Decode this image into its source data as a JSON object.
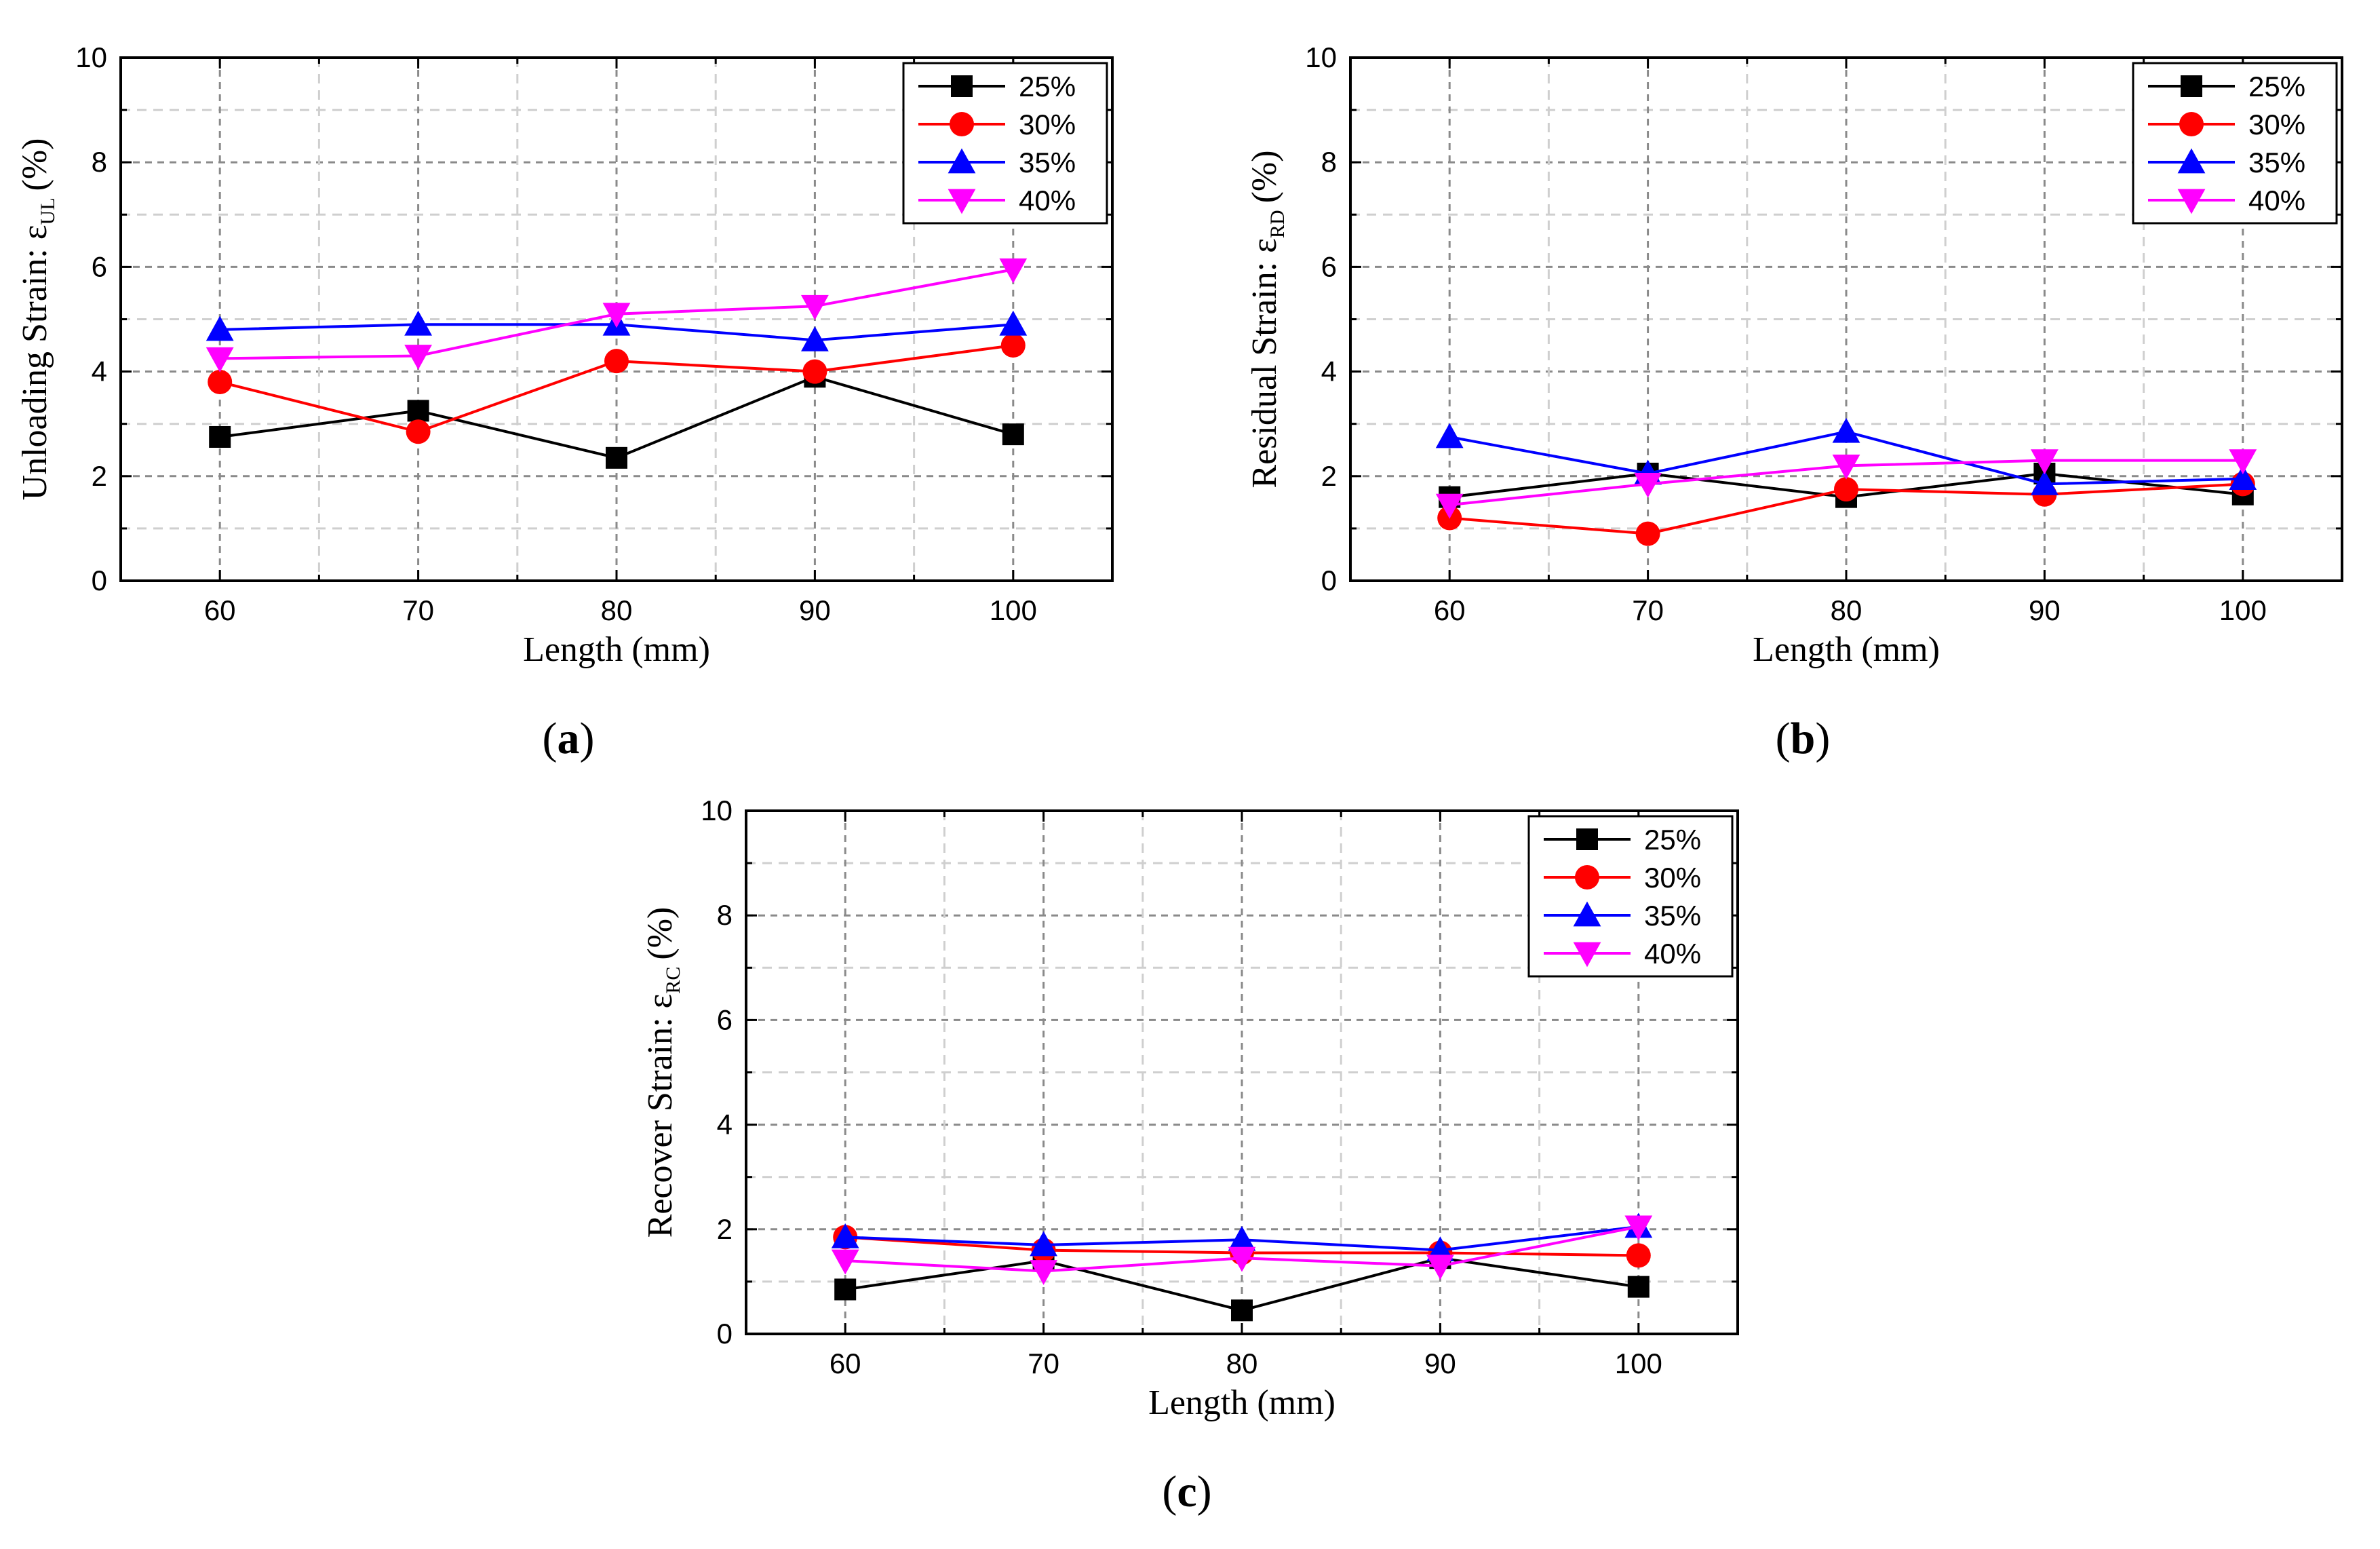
{
  "colors": {
    "25%": "#000000",
    "30%": "#ff0000",
    "35%": "#0000ff",
    "40%": "#ff00ff"
  },
  "chart_data": [
    {
      "type": "line",
      "panel": "(a)",
      "panel_letter": "a",
      "ylabel_main": "Unloading Strain: ε",
      "ylabel_sub": "UL",
      "ylabel_unit": "(%)",
      "xlabel": "Length (mm)",
      "x": [
        60,
        70,
        80,
        90,
        100
      ],
      "xlim": [
        55,
        105
      ],
      "ylim": [
        0,
        10
      ],
      "yticks": [
        0,
        2,
        4,
        6,
        8,
        10
      ],
      "grid": true,
      "legend_position": "top-right",
      "series": [
        {
          "name": "25%",
          "marker": "square",
          "values": [
            2.75,
            3.25,
            2.35,
            3.9,
            2.8
          ]
        },
        {
          "name": "30%",
          "marker": "circle",
          "values": [
            3.8,
            2.85,
            4.2,
            4.0,
            4.5
          ]
        },
        {
          "name": "35%",
          "marker": "triangle-up",
          "values": [
            4.8,
            4.9,
            4.9,
            4.6,
            4.9
          ]
        },
        {
          "name": "40%",
          "marker": "triangle-down",
          "values": [
            4.25,
            4.3,
            5.1,
            5.25,
            5.95
          ]
        }
      ]
    },
    {
      "type": "line",
      "panel": "(b)",
      "panel_letter": "b",
      "ylabel_main": "Residual Strain: ε",
      "ylabel_sub": "RD",
      "ylabel_unit": "(%)",
      "xlabel": "Length (mm)",
      "x": [
        60,
        70,
        80,
        90,
        100
      ],
      "xlim": [
        55,
        105
      ],
      "ylim": [
        0,
        10
      ],
      "yticks": [
        0,
        2,
        4,
        6,
        8,
        10
      ],
      "grid": true,
      "legend_position": "top-right",
      "series": [
        {
          "name": "25%",
          "marker": "square",
          "values": [
            1.6,
            2.05,
            1.6,
            2.05,
            1.65
          ]
        },
        {
          "name": "30%",
          "marker": "circle",
          "values": [
            1.2,
            0.9,
            1.75,
            1.65,
            1.85
          ]
        },
        {
          "name": "35%",
          "marker": "triangle-up",
          "values": [
            2.75,
            2.05,
            2.85,
            1.85,
            1.95
          ]
        },
        {
          "name": "40%",
          "marker": "triangle-down",
          "values": [
            1.45,
            1.85,
            2.2,
            2.3,
            2.3
          ]
        }
      ]
    },
    {
      "type": "line",
      "panel": "(c)",
      "panel_letter": "c",
      "ylabel_main": "Recover Strain: ε",
      "ylabel_sub": "RC",
      "ylabel_unit": "(%)",
      "xlabel": "Length (mm)",
      "x": [
        60,
        70,
        80,
        90,
        100
      ],
      "xlim": [
        55,
        105
      ],
      "ylim": [
        0,
        10
      ],
      "yticks": [
        0,
        2,
        4,
        6,
        8,
        10
      ],
      "grid": true,
      "legend_position": "top-right",
      "series": [
        {
          "name": "25%",
          "marker": "square",
          "values": [
            0.85,
            1.4,
            0.45,
            1.45,
            0.9
          ]
        },
        {
          "name": "30%",
          "marker": "circle",
          "values": [
            1.85,
            1.6,
            1.55,
            1.55,
            1.5
          ]
        },
        {
          "name": "35%",
          "marker": "triangle-up",
          "values": [
            1.85,
            1.7,
            1.8,
            1.6,
            2.05
          ]
        },
        {
          "name": "40%",
          "marker": "triangle-down",
          "values": [
            1.4,
            1.2,
            1.45,
            1.3,
            2.05
          ]
        }
      ]
    }
  ]
}
